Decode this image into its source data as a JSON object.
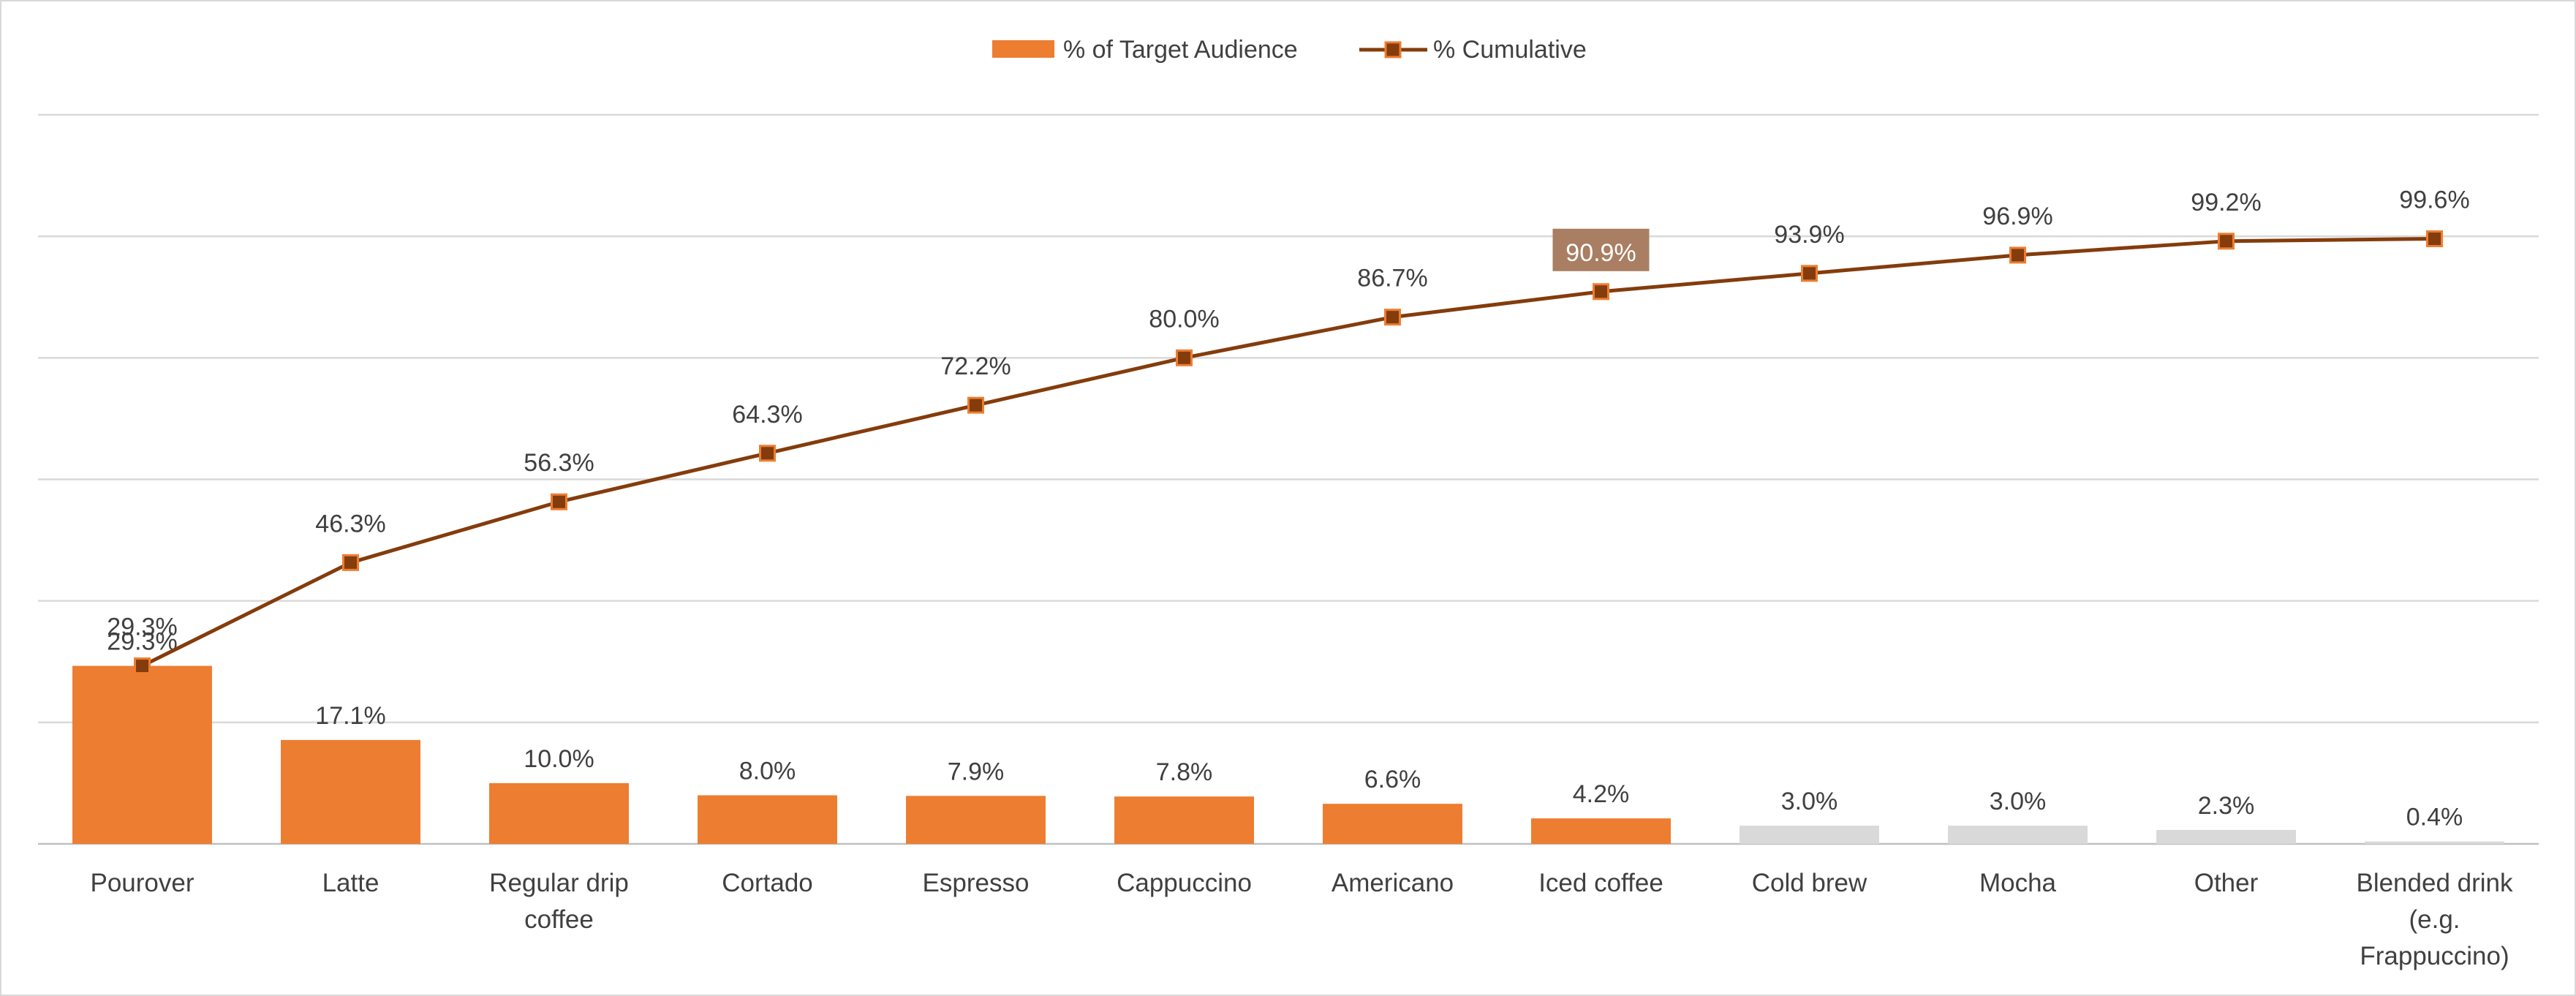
{
  "chart_data": {
    "type": "bar+line",
    "categories": [
      "Pourover",
      "Latte",
      "Regular drip coffee",
      "Cortado",
      "Espresso",
      "Cappuccino",
      "Americano",
      "Iced coffee",
      "Cold brew",
      "Mocha",
      "Other",
      "Blended drink (e.g. Frappuccino)"
    ],
    "category_lines": [
      [
        "Pourover"
      ],
      [
        "Latte"
      ],
      [
        "Regular drip",
        "coffee"
      ],
      [
        "Cortado"
      ],
      [
        "Espresso"
      ],
      [
        "Cappuccino"
      ],
      [
        "Americano"
      ],
      [
        "Iced coffee"
      ],
      [
        "Cold brew"
      ],
      [
        "Mocha"
      ],
      [
        "Other"
      ],
      [
        "Blended drink",
        "(e.g.",
        "Frappuccino)"
      ]
    ],
    "series": [
      {
        "name": "% of Target Audience",
        "type": "bar",
        "values": [
          29.3,
          17.1,
          10.0,
          8.0,
          7.9,
          7.8,
          6.6,
          4.2,
          3.0,
          3.0,
          2.3,
          0.4
        ],
        "labels": [
          "29.3%",
          "17.1%",
          "10.0%",
          "8.0%",
          "7.9%",
          "7.8%",
          "6.6%",
          "4.2%",
          "3.0%",
          "3.0%",
          "2.3%",
          "0.4%"
        ],
        "color": "#ED7D31",
        "muted_color": "#D9D9D9",
        "highlighted_count": 8
      },
      {
        "name": "% Cumulative",
        "type": "line",
        "values": [
          29.3,
          46.3,
          56.3,
          64.3,
          72.2,
          80.0,
          86.7,
          90.9,
          93.9,
          96.9,
          99.2,
          99.6
        ],
        "labels": [
          "29.3%",
          "46.3%",
          "56.3%",
          "64.3%",
          "72.2%",
          "80.0%",
          "86.7%",
          "90.9%",
          "93.9%",
          "96.9%",
          "99.2%",
          "99.6%"
        ],
        "line_color": "#843C0C",
        "marker_fill": "#843C0C",
        "marker_edge": "#ED7D31",
        "highlight_index": 7,
        "highlight_label_bg": "#A97E62"
      }
    ],
    "ylim": [
      0,
      120
    ],
    "gridlines": true,
    "gridline_values": [
      0,
      20,
      40,
      60,
      80,
      100,
      120
    ],
    "legend": {
      "position": "top",
      "items": [
        "% of Target Audience",
        "% Cumulative"
      ]
    },
    "title": "",
    "xlabel": "",
    "ylabel": ""
  }
}
